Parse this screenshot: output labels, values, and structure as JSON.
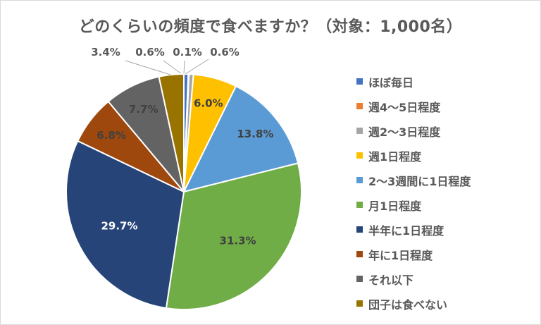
{
  "chart_data": {
    "type": "pie",
    "title": "どのくらいの頻度で食べますか？（対象：1,000名）",
    "legend_position": "right",
    "slices": [
      {
        "label": "ほぼ毎日",
        "value": 0.6,
        "display": "0.6%",
        "color": "#4472c4",
        "label_text_color": "#595959"
      },
      {
        "label": "週4～5日程度",
        "value": 0.1,
        "display": "0.1%",
        "color": "#ed7d31",
        "label_text_color": "#595959"
      },
      {
        "label": "週2～3日程度",
        "value": 0.6,
        "display": "0.6%",
        "color": "#a5a5a5",
        "label_text_color": "#595959"
      },
      {
        "label": "週1日程度",
        "value": 6.0,
        "display": "6.0%",
        "color": "#ffc000",
        "label_text_color": "#404040"
      },
      {
        "label": "2～3週間に1日程度",
        "value": 13.8,
        "display": "13.8%",
        "color": "#5b9bd5",
        "label_text_color": "#404040"
      },
      {
        "label": "月1日程度",
        "value": 31.3,
        "display": "31.3%",
        "color": "#70ad47",
        "label_text_color": "#404040"
      },
      {
        "label": "半年に1日程度",
        "value": 29.7,
        "display": "29.7%",
        "color": "#264478",
        "label_text_color": "#ffffff"
      },
      {
        "label": "年に1日程度",
        "value": 6.8,
        "display": "6.8%",
        "color": "#9e480e",
        "label_text_color": "#404040"
      },
      {
        "label": "それ以下",
        "value": 7.7,
        "display": "7.7%",
        "color": "#636363",
        "label_text_color": "#404040"
      },
      {
        "label": "団子は食べない",
        "value": 3.4,
        "display": "3.4%",
        "color": "#997300",
        "label_text_color": "#595959"
      }
    ]
  }
}
